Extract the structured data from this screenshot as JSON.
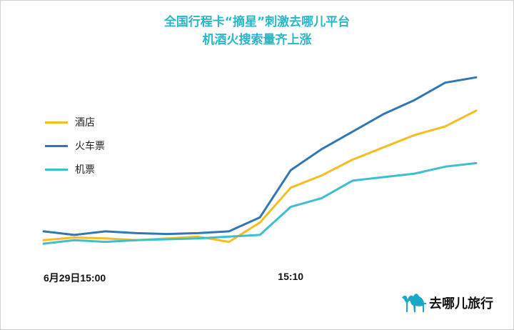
{
  "title_lines": [
    "全国行程卡“摘星”刺激去哪儿平台",
    "机酒火搜索量齐上涨"
  ],
  "brand": {
    "name": "去哪儿旅行",
    "icon": "camel-logo-icon",
    "color": "#1aa8c8"
  },
  "chart_data": {
    "type": "line",
    "title": "全国行程卡“摘星”刺激去哪儿平台 机酒火搜索量齐上涨",
    "xlabel": "",
    "ylabel": "",
    "grid": false,
    "legend_position": "left",
    "x_tick_labels": [
      {
        "index": 0,
        "label": "6月29日15:00"
      },
      {
        "index": 8,
        "label": "15:10"
      }
    ],
    "ylim": [
      0,
      100
    ],
    "series": [
      {
        "name": "酒店",
        "color": "#f5bd1f",
        "values": [
          4,
          5.5,
          5,
          4,
          5,
          6,
          3,
          14,
          34,
          41,
          50,
          57,
          64,
          69,
          78
        ]
      },
      {
        "name": "火车票",
        "color": "#3277b3",
        "values": [
          9,
          7,
          9,
          8,
          7.5,
          8,
          9,
          17,
          44,
          56,
          66,
          76,
          84,
          94,
          97
        ]
      },
      {
        "name": "机票",
        "color": "#3cc0d0",
        "values": [
          2,
          4,
          3,
          4,
          4.5,
          5,
          6,
          7,
          23,
          28,
          38,
          40,
          42,
          46,
          48
        ]
      }
    ]
  }
}
